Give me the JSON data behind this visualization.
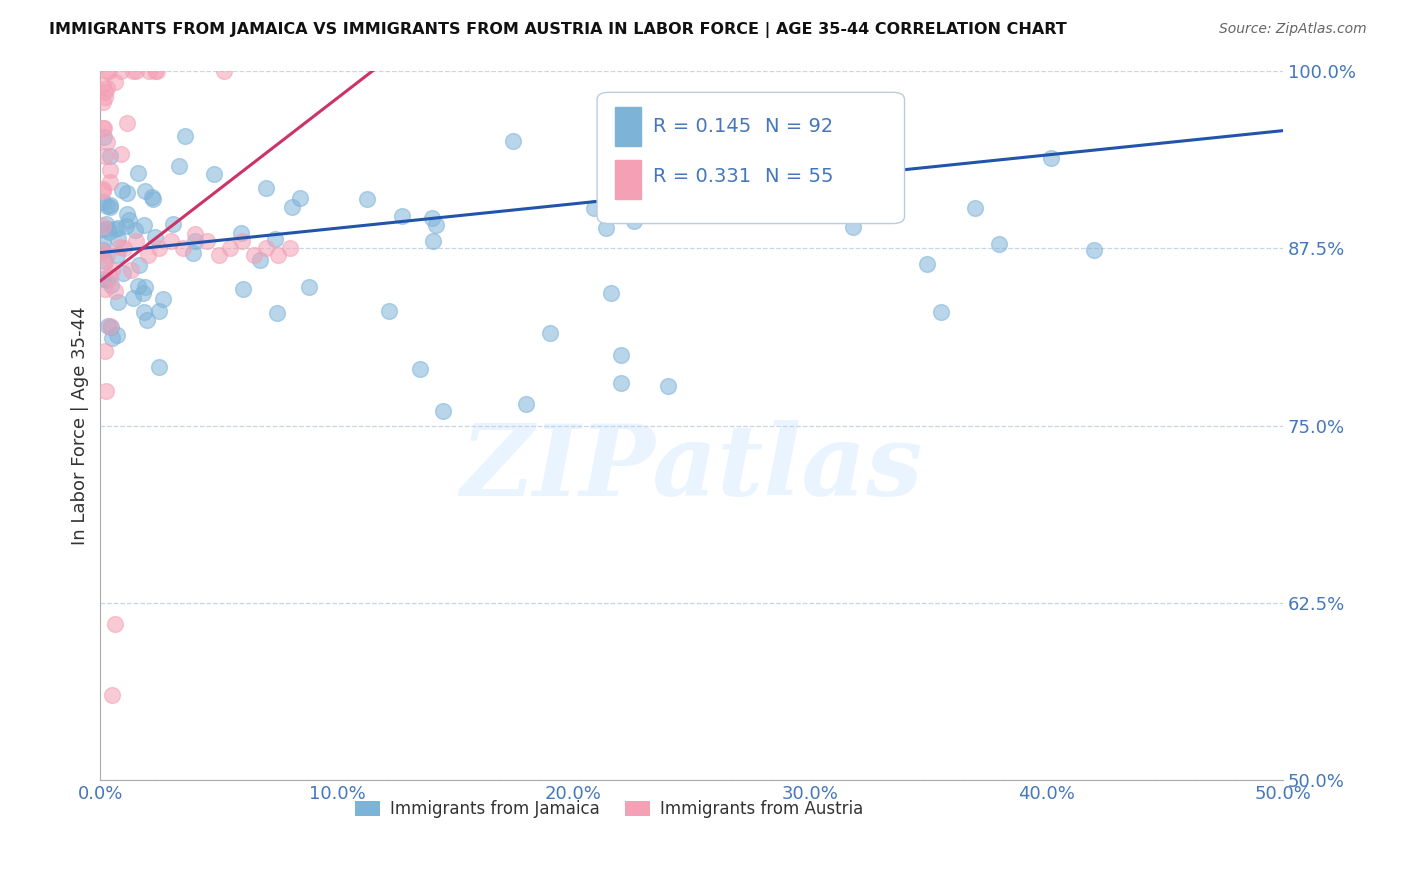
{
  "title": "IMMIGRANTS FROM JAMAICA VS IMMIGRANTS FROM AUSTRIA IN LABOR FORCE | AGE 35-44 CORRELATION CHART",
  "source": "Source: ZipAtlas.com",
  "ylabel": "In Labor Force | Age 35-44",
  "xlim": [
    0.0,
    0.5
  ],
  "ylim": [
    0.5,
    1.0
  ],
  "xticks": [
    0.0,
    0.1,
    0.2,
    0.3,
    0.4,
    0.5
  ],
  "xtick_labels": [
    "0.0%",
    "10.0%",
    "20.0%",
    "30.0%",
    "40.0%",
    "50.0%"
  ],
  "yticks": [
    0.5,
    0.625,
    0.75,
    0.875,
    1.0
  ],
  "ytick_labels": [
    "50.0%",
    "62.5%",
    "75.0%",
    "87.5%",
    "100.0%"
  ],
  "jamaica_color": "#7EB3D8",
  "austria_color": "#F4A0B5",
  "jamaica_line_color": "#2255AA",
  "austria_line_color": "#CC3366",
  "jamaica_R": 0.145,
  "jamaica_N": 92,
  "austria_R": 0.331,
  "austria_N": 55,
  "legend_jamaica": "Immigrants from Jamaica",
  "legend_austria": "Immigrants from Austria",
  "rn_text_color": "#4477BB",
  "grid_color": "#BBCCDD",
  "watermark": "ZIPatlas"
}
